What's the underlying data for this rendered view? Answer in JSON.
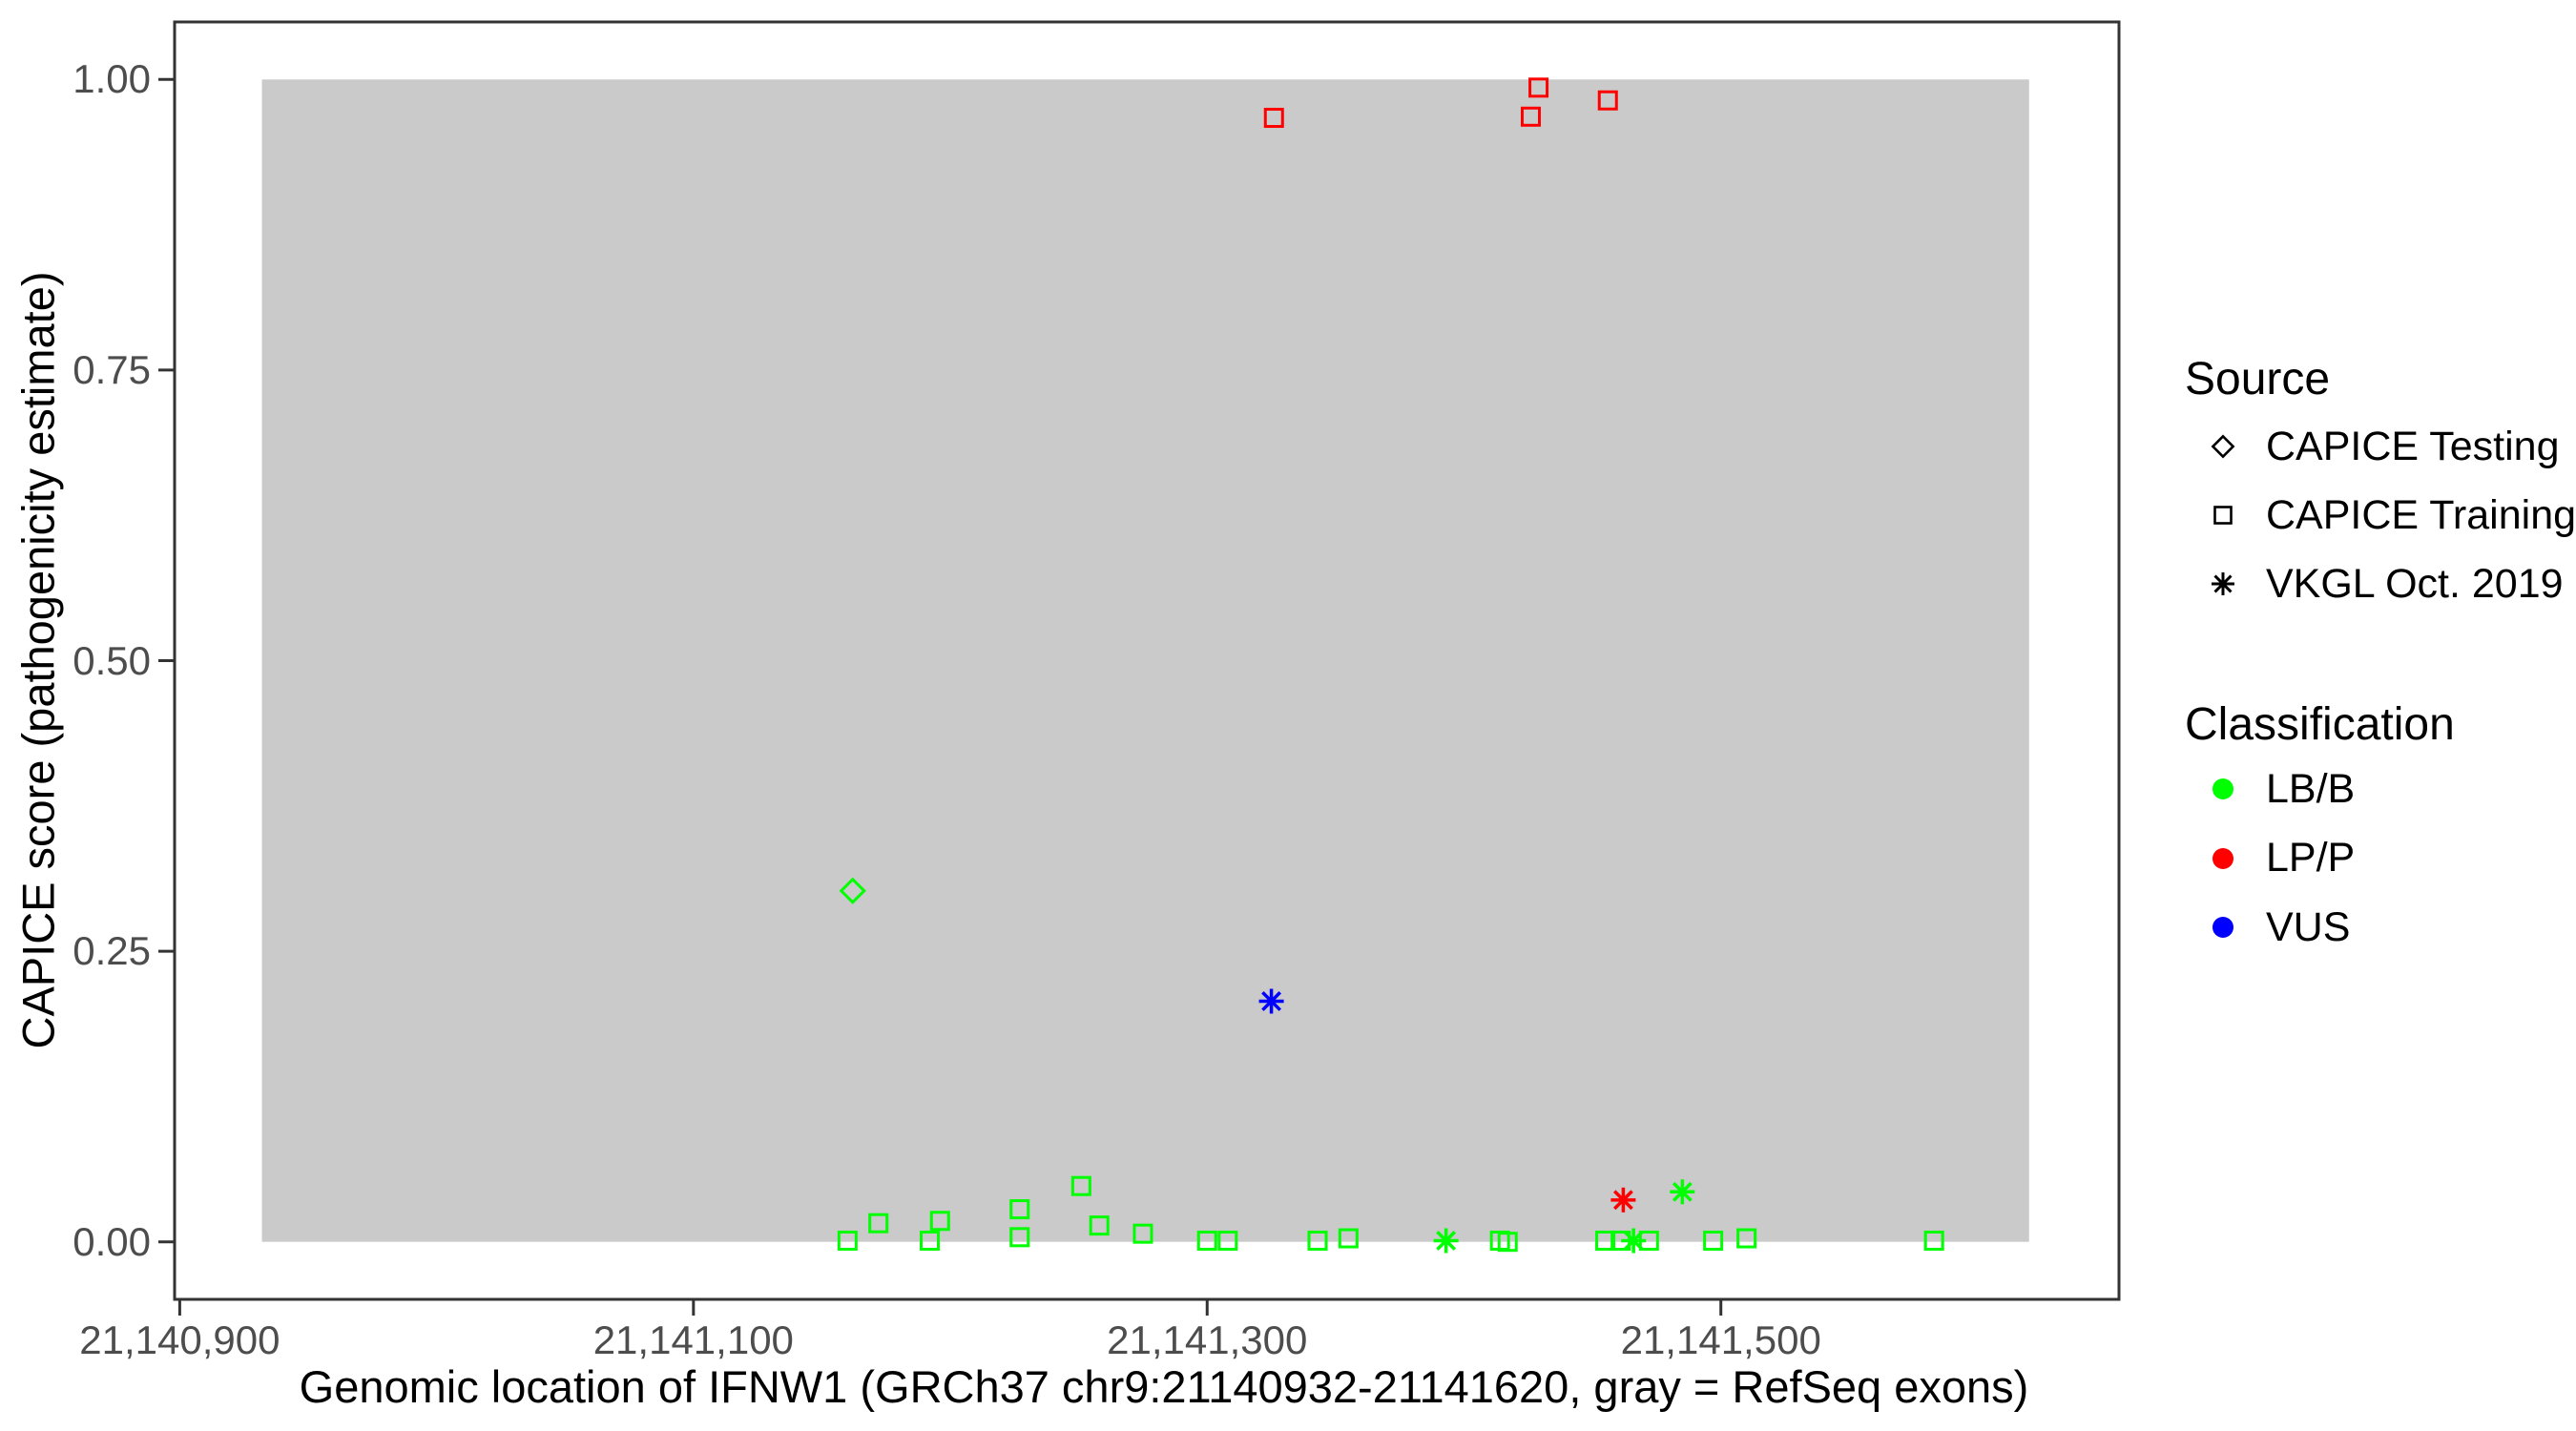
{
  "chart_data": {
    "type": "scatter",
    "title": "",
    "xlabel": "Genomic location of IFNW1 (GRCh37 chr9:21140932-21141620, gray = RefSeq exons)",
    "ylabel": "CAPICE score (pathogenicity estimate)",
    "xlim": [
      21140898,
      21141655
    ],
    "ylim": [
      -0.0495,
      1.0495
    ],
    "grid": false,
    "legend_position": "right",
    "panel": {
      "background": "#FFFFFF",
      "border_color": "#333333",
      "tick_color": "#333333",
      "tick_label_color": "#4d4d4d"
    },
    "x_ticks": [
      {
        "value": 21140900,
        "label": "21,140,900"
      },
      {
        "value": 21141100,
        "label": "21,141,100"
      },
      {
        "value": 21141300,
        "label": "21,141,300"
      },
      {
        "value": 21141500,
        "label": "21,141,500"
      }
    ],
    "y_ticks": [
      {
        "value": 0.0,
        "label": "0.00"
      },
      {
        "value": 0.25,
        "label": "0.25"
      },
      {
        "value": 0.5,
        "label": "0.50"
      },
      {
        "value": 0.75,
        "label": "0.75"
      },
      {
        "value": 1.0,
        "label": "1.00"
      }
    ],
    "exon_region": {
      "start": 21140932,
      "end": 21141620,
      "ymin": 0,
      "ymax": 1,
      "fill": "#CACACA"
    },
    "source_legend": {
      "title": "Source",
      "entries": [
        {
          "label": "CAPICE Testing",
          "marker": "diamond"
        },
        {
          "label": "CAPICE Training",
          "marker": "square"
        },
        {
          "label": "VKGL Oct. 2019",
          "marker": "asterisk"
        }
      ]
    },
    "classification_legend": {
      "title": "Classification",
      "entries": [
        {
          "label": "LB/B",
          "color": "#00FF00"
        },
        {
          "label": "LP/P",
          "color": "#FF0000"
        },
        {
          "label": "VUS",
          "color": "#0000FF"
        }
      ]
    },
    "source_markers": {
      "CAPICE Testing": "diamond",
      "CAPICE Training": "square",
      "VKGL Oct. 2019": "asterisk"
    },
    "classification_colors": {
      "LB/B": "#00FF00",
      "LP/P": "#FF0000",
      "VUS": "#0000FF"
    },
    "points": [
      {
        "x": 21141162,
        "y": 0.302,
        "source": "CAPICE Testing",
        "classification": "LB/B"
      },
      {
        "x": 21141326,
        "y": 0.967,
        "source": "CAPICE Training",
        "classification": "LP/P"
      },
      {
        "x": 21141426,
        "y": 0.968,
        "source": "CAPICE Training",
        "classification": "LP/P"
      },
      {
        "x": 21141429,
        "y": 0.993,
        "source": "CAPICE Training",
        "classification": "LP/P"
      },
      {
        "x": 21141456,
        "y": 0.982,
        "source": "CAPICE Training",
        "classification": "LP/P"
      },
      {
        "x": 21141325,
        "y": 0.207,
        "source": "VKGL Oct. 2019",
        "classification": "VUS"
      },
      {
        "x": 21141462,
        "y": 0.036,
        "source": "VKGL Oct. 2019",
        "classification": "LP/P"
      },
      {
        "x": 21141485,
        "y": 0.043,
        "source": "VKGL Oct. 2019",
        "classification": "LB/B"
      },
      {
        "x": 21141393,
        "y": 0.001,
        "source": "VKGL Oct. 2019",
        "classification": "LB/B"
      },
      {
        "x": 21141466,
        "y": 0.001,
        "source": "VKGL Oct. 2019",
        "classification": "LB/B"
      },
      {
        "x": 21141160,
        "y": 0.001,
        "source": "CAPICE Training",
        "classification": "LB/B"
      },
      {
        "x": 21141172,
        "y": 0.016,
        "source": "CAPICE Training",
        "classification": "LB/B"
      },
      {
        "x": 21141192,
        "y": 0.001,
        "source": "CAPICE Training",
        "classification": "LB/B"
      },
      {
        "x": 21141196,
        "y": 0.018,
        "source": "CAPICE Training",
        "classification": "LB/B"
      },
      {
        "x": 21141227,
        "y": 0.028,
        "source": "CAPICE Training",
        "classification": "LB/B"
      },
      {
        "x": 21141227,
        "y": 0.004,
        "source": "CAPICE Training",
        "classification": "LB/B"
      },
      {
        "x": 21141251,
        "y": 0.048,
        "source": "CAPICE Training",
        "classification": "LB/B"
      },
      {
        "x": 21141258,
        "y": 0.014,
        "source": "CAPICE Training",
        "classification": "LB/B"
      },
      {
        "x": 21141275,
        "y": 0.007,
        "source": "CAPICE Training",
        "classification": "LB/B"
      },
      {
        "x": 21141300,
        "y": 0.001,
        "source": "CAPICE Training",
        "classification": "LB/B"
      },
      {
        "x": 21141308,
        "y": 0.001,
        "source": "CAPICE Training",
        "classification": "LB/B"
      },
      {
        "x": 21141343,
        "y": 0.001,
        "source": "CAPICE Training",
        "classification": "LB/B"
      },
      {
        "x": 21141355,
        "y": 0.003,
        "source": "CAPICE Training",
        "classification": "LB/B"
      },
      {
        "x": 21141414,
        "y": 0.001,
        "source": "CAPICE Training",
        "classification": "LB/B"
      },
      {
        "x": 21141417,
        "y": 0.0,
        "source": "CAPICE Training",
        "classification": "LB/B"
      },
      {
        "x": 21141455,
        "y": 0.001,
        "source": "CAPICE Training",
        "classification": "LB/B"
      },
      {
        "x": 21141461,
        "y": 0.001,
        "source": "CAPICE Training",
        "classification": "LB/B"
      },
      {
        "x": 21141472,
        "y": 0.001,
        "source": "CAPICE Training",
        "classification": "LB/B"
      },
      {
        "x": 21141497,
        "y": 0.001,
        "source": "CAPICE Training",
        "classification": "LB/B"
      },
      {
        "x": 21141510,
        "y": 0.003,
        "source": "CAPICE Training",
        "classification": "LB/B"
      },
      {
        "x": 21141583,
        "y": 0.001,
        "source": "CAPICE Training",
        "classification": "LB/B"
      }
    ]
  }
}
